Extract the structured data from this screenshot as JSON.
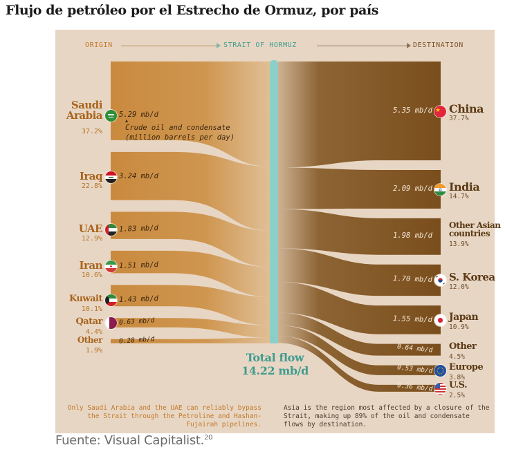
{
  "title": "Flujo de petróleo por el Estrecho de Ormuz, por país",
  "source": {
    "text": "Fuente: Visual Capitalist.",
    "footnote": "20"
  },
  "header": {
    "origin": "ORIGIN",
    "strait": "STRAIT OF HORMUZ",
    "destination": "DESTINATION"
  },
  "unit_note": {
    "line1": "Crude oil and condensate",
    "line2": "(million barrels per day)"
  },
  "total": {
    "label": "Total flow",
    "value": "14.22 mb/d"
  },
  "notes": {
    "left": "Only Saudi Arabia and the UAE can reliably bypass the Strait through the Petroline and Hashan-Fujairah pipelines.",
    "right": "Asia is the region most affected by a closure of the Strait, making up 89% of the oil and condensate flows by destination."
  },
  "colors": {
    "origin": "#c98a3e",
    "destination": "#7a4e1c",
    "strait": "#8ccfc8",
    "total": "#3f9c8f",
    "background": "#e8d6c4"
  },
  "chart_data": {
    "type": "sankey",
    "title": "Flujo de petróleo por el Estrecho de Ormuz, por país",
    "unit": "mb/d",
    "total": 14.22,
    "origins": [
      {
        "name": "Saudi Arabia",
        "value": 5.29,
        "value_label": "5.29 mb/d",
        "share": "37.2%",
        "flag": "saudi-arabia"
      },
      {
        "name": "Iraq",
        "value": 3.24,
        "value_label": "3.24 mb/d",
        "share": "22.8%",
        "flag": "iraq"
      },
      {
        "name": "UAE",
        "value": 1.83,
        "value_label": "1.83 mb/d",
        "share": "12.9%",
        "flag": "uae"
      },
      {
        "name": "Iran",
        "value": 1.51,
        "value_label": "1.51 mb/d",
        "share": "10.6%",
        "flag": "iran"
      },
      {
        "name": "Kuwait",
        "value": 1.43,
        "value_label": "1.43 mb/d",
        "share": "10.1%",
        "flag": "kuwait"
      },
      {
        "name": "Qatar",
        "value": 0.63,
        "value_label": "0.63 mb/d",
        "share": "4.4%",
        "flag": "qatar"
      },
      {
        "name": "Other",
        "value": 0.28,
        "value_label": "0.28 mb/d",
        "share": "1.9%",
        "flag": ""
      }
    ],
    "destinations": [
      {
        "name": "China",
        "value": 5.35,
        "value_label": "5.35 mb/d",
        "share": "37.7%",
        "flag": "china"
      },
      {
        "name": "India",
        "value": 2.09,
        "value_label": "2.09 mb/d",
        "share": "14.7%",
        "flag": "india"
      },
      {
        "name": "Other Asian countries",
        "value": 1.98,
        "value_label": "1.98 mb/d",
        "share": "13.9%",
        "flag": ""
      },
      {
        "name": "S. Korea",
        "value": 1.7,
        "value_label": "1.70 mb/d",
        "share": "12.0%",
        "flag": "south-korea"
      },
      {
        "name": "Japan",
        "value": 1.55,
        "value_label": "1.55 mb/d",
        "share": "10.9%",
        "flag": "japan"
      },
      {
        "name": "Other",
        "value": 0.64,
        "value_label": "0.64 mb/d",
        "share": "4.5%",
        "flag": ""
      },
      {
        "name": "Europe",
        "value": 0.53,
        "value_label": "0.53 mb/d",
        "share": "3.8%",
        "flag": "eu"
      },
      {
        "name": "U.S.",
        "value": 0.36,
        "value_label": "0.36 mb/d",
        "share": "2.5%",
        "flag": "usa"
      }
    ]
  }
}
